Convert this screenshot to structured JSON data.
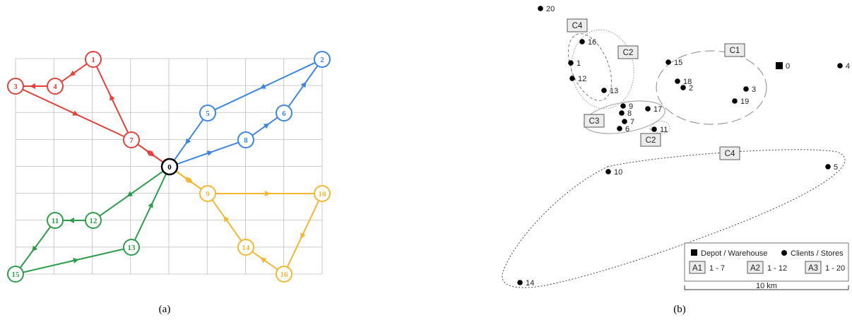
{
  "panel_a": {
    "caption": "(a)",
    "depot": {
      "id": "0",
      "color": "#000000"
    },
    "routes": [
      {
        "color": "#e5423c",
        "path": [
          "0",
          "7",
          "1",
          "4",
          "3",
          "7",
          "0"
        ],
        "nodes": [
          "1",
          "3",
          "4",
          "7"
        ]
      },
      {
        "color": "#3d86e3",
        "path": [
          "0",
          "8",
          "6",
          "2",
          "5",
          "0"
        ],
        "nodes": [
          "2",
          "5",
          "6",
          "8"
        ]
      },
      {
        "color": "#f5b731",
        "path": [
          "0",
          "9",
          "10",
          "16",
          "14",
          "9",
          "0"
        ],
        "nodes": [
          "9",
          "10",
          "14",
          "16"
        ]
      },
      {
        "color": "#2e9e4c",
        "path": [
          "0",
          "12",
          "11",
          "15",
          "13",
          "0"
        ],
        "nodes": [
          "11",
          "12",
          "13",
          "15"
        ]
      }
    ]
  },
  "panel_b": {
    "caption": "(b)",
    "depot_label": "0",
    "clients": [
      "20",
      "16",
      "1",
      "12",
      "13",
      "15",
      "18",
      "2",
      "3",
      "19",
      "9",
      "8",
      "7",
      "6",
      "17",
      "11",
      "10",
      "5",
      "14",
      "4"
    ],
    "clusters": [
      "C4",
      "C2",
      "C1",
      "C3",
      "C2",
      "C4"
    ],
    "legend": {
      "depot_text": "Depot / Warehouse",
      "clients_text": "Clients / Stores",
      "sets": [
        {
          "tag": "A1",
          "range": "1 - 7"
        },
        {
          "tag": "A2",
          "range": "1 - 12"
        },
        {
          "tag": "A3",
          "range": "1 - 20"
        }
      ],
      "scale_text": "10 km"
    }
  }
}
